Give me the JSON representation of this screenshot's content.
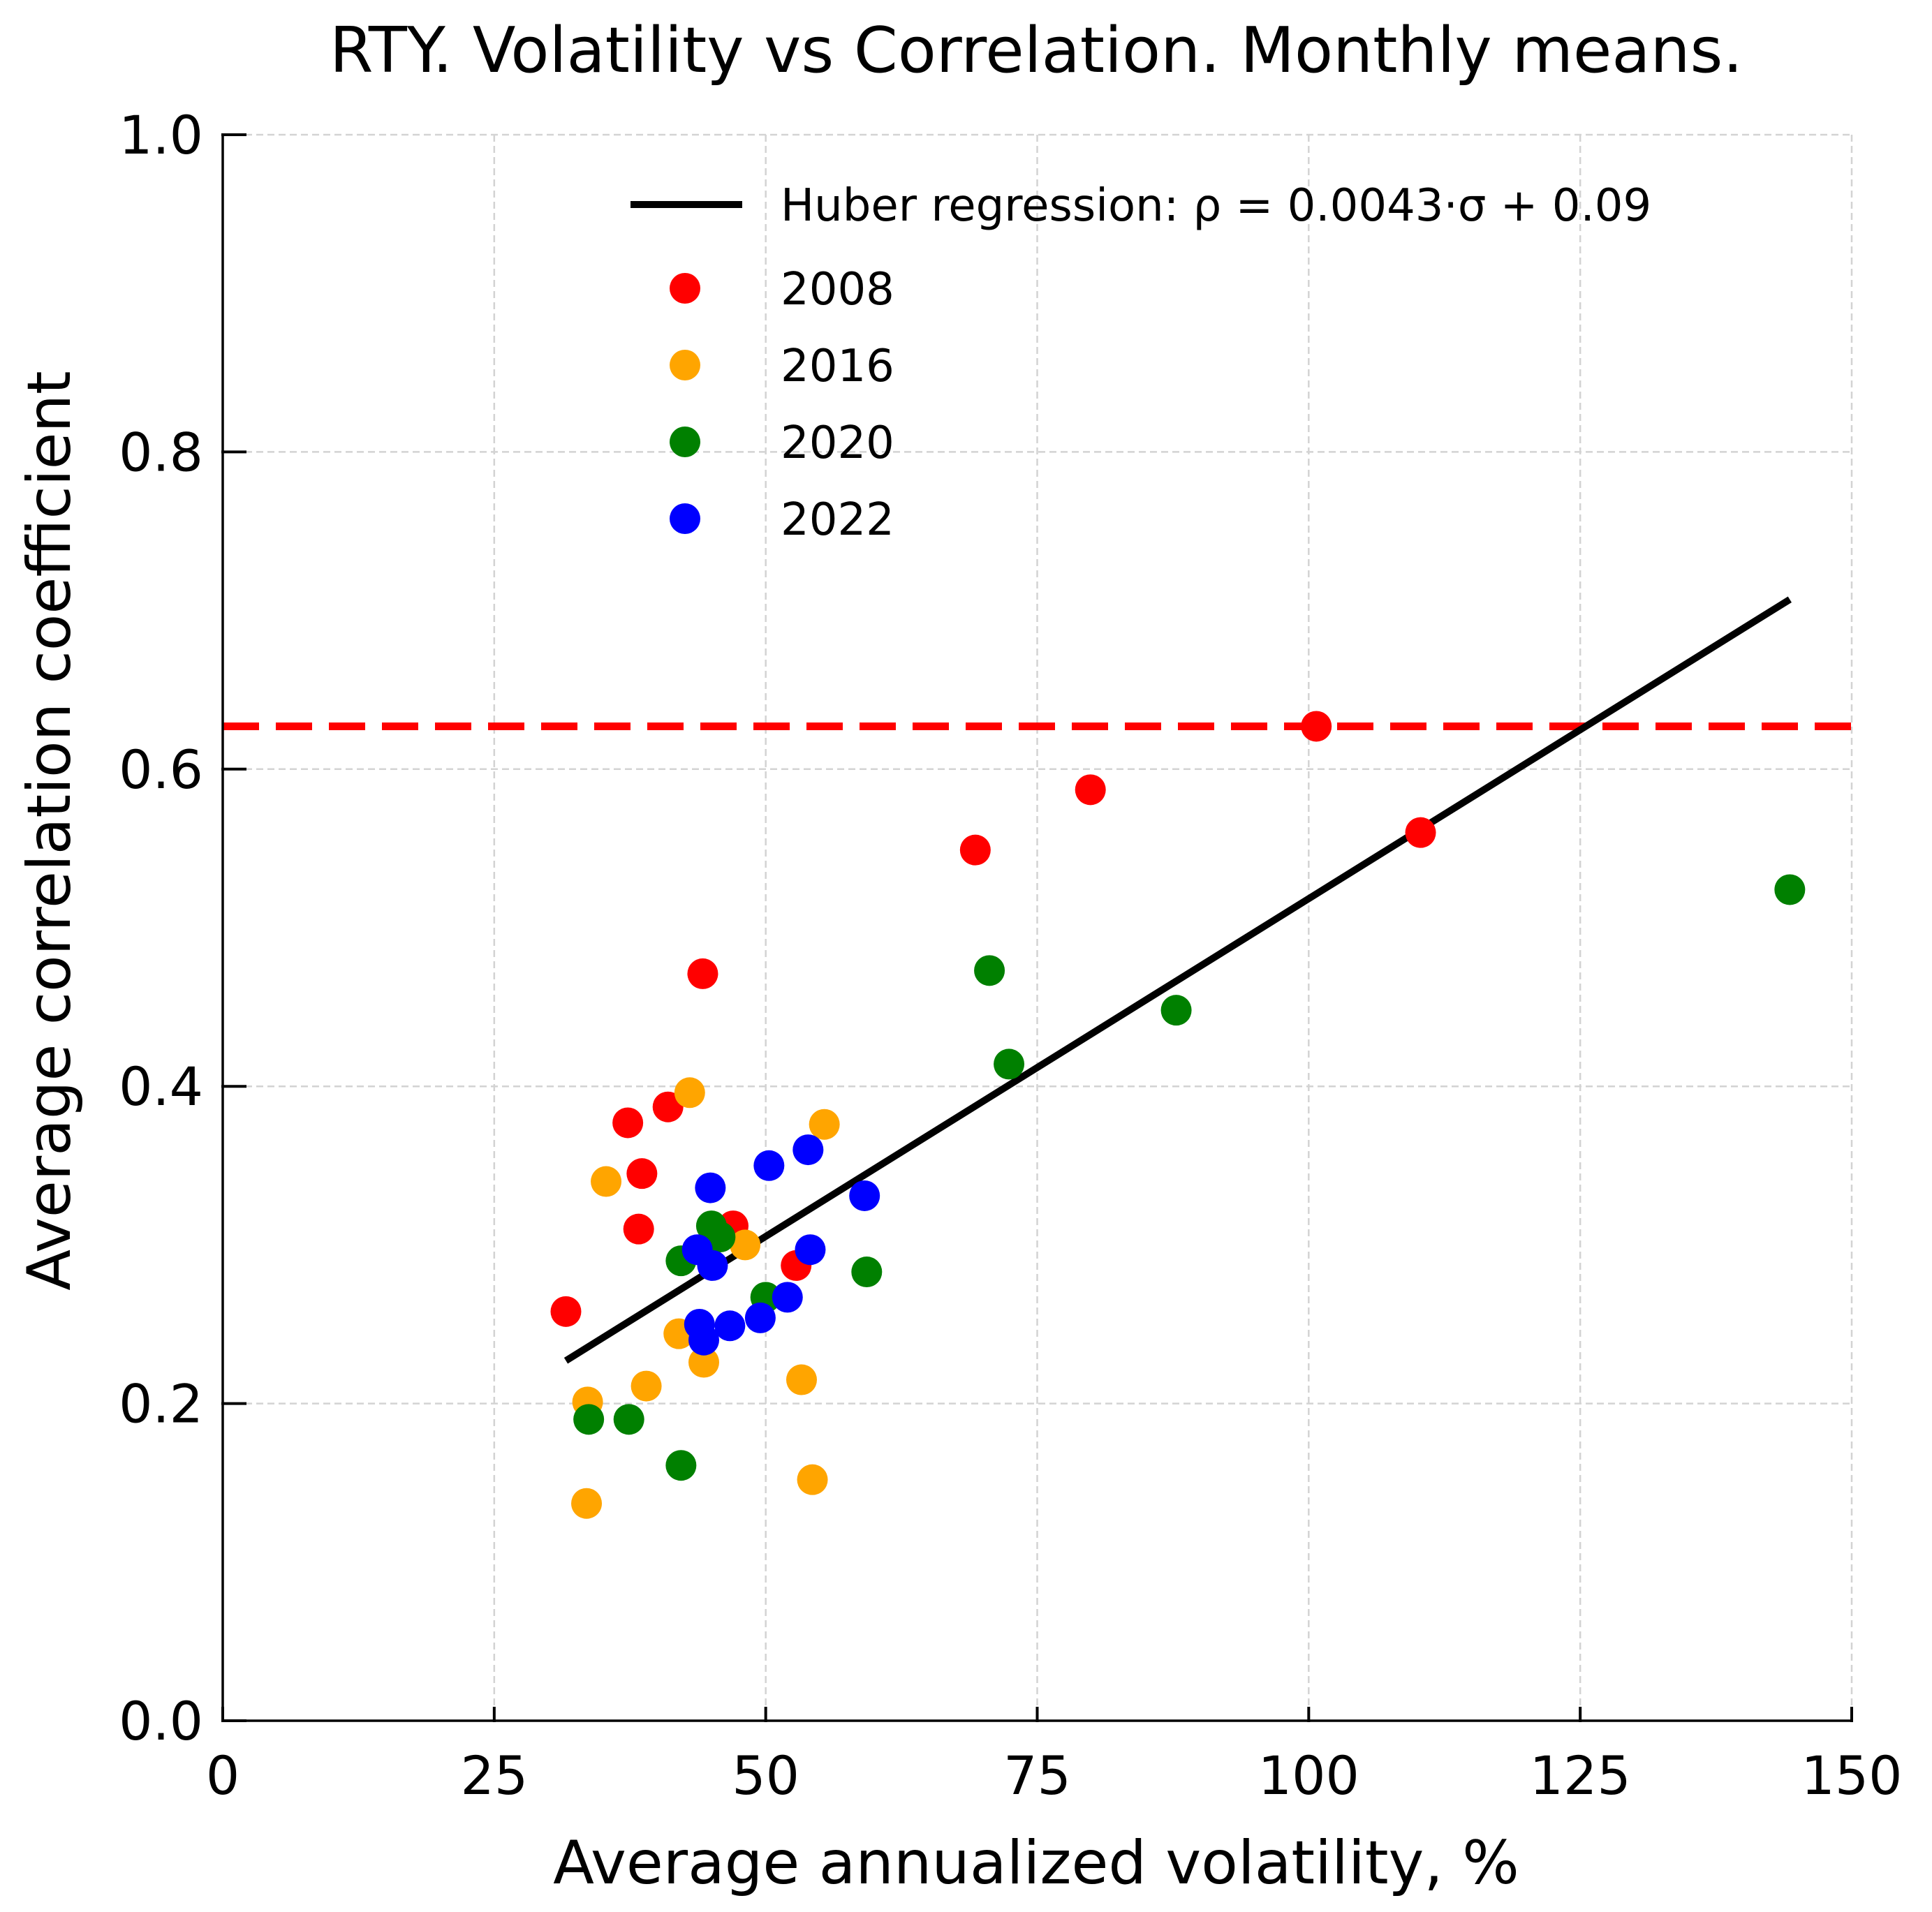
{
  "chart_data": {
    "type": "scatter",
    "title": "RTY. Volatility vs Correlation. Monthly means.",
    "xlabel": "Average annualized volatility, %",
    "ylabel": "Average correlation coefficient",
    "xlim": [
      0,
      150
    ],
    "ylim": [
      0,
      1.0
    ],
    "x_ticks": [
      "0",
      "25",
      "50",
      "75",
      "100",
      "125",
      "150"
    ],
    "x_tick_values": [
      0,
      25,
      50,
      75,
      100,
      125,
      150
    ],
    "y_ticks": [
      "0.0",
      "0.2",
      "0.4",
      "0.6",
      "0.8",
      "1.0"
    ],
    "y_tick_values": [
      0.0,
      0.2,
      0.4,
      0.6,
      0.8,
      1.0
    ],
    "grid": true,
    "legend_position": "top-right",
    "regression": {
      "label": "Huber regression: ρ = 0.0043·σ + 0.09",
      "color": "#000000",
      "slope": 0.0043,
      "intercept": 0.09,
      "x_start": 31.6,
      "x_end": 144.3,
      "y_start": 0.227,
      "y_end": 0.707
    },
    "threshold_line": {
      "y": 0.627,
      "color": "#ff0000",
      "style": "dashed"
    },
    "series": [
      {
        "name": "2008",
        "color": "#ff0000",
        "points": [
          [
            31.6,
            0.258
          ],
          [
            37.3,
            0.377
          ],
          [
            38.3,
            0.31
          ],
          [
            38.6,
            0.345
          ],
          [
            41.0,
            0.387
          ],
          [
            44.2,
            0.471
          ],
          [
            47.0,
            0.312
          ],
          [
            52.8,
            0.287
          ],
          [
            69.3,
            0.549
          ],
          [
            79.9,
            0.587
          ],
          [
            100.7,
            0.627
          ],
          [
            110.3,
            0.56
          ]
        ]
      },
      {
        "name": "2016",
        "color": "#ffa500",
        "points": [
          [
            33.5,
            0.137
          ],
          [
            33.6,
            0.201
          ],
          [
            35.3,
            0.34
          ],
          [
            39.0,
            0.211
          ],
          [
            42.0,
            0.244
          ],
          [
            43.0,
            0.396
          ],
          [
            44.3,
            0.226
          ],
          [
            48.1,
            0.3
          ],
          [
            53.3,
            0.215
          ],
          [
            54.3,
            0.152
          ],
          [
            55.4,
            0.376
          ]
        ]
      },
      {
        "name": "2020",
        "color": "#008000",
        "points": [
          [
            33.7,
            0.19
          ],
          [
            37.4,
            0.19
          ],
          [
            42.2,
            0.161
          ],
          [
            42.2,
            0.29
          ],
          [
            45.0,
            0.312
          ],
          [
            45.8,
            0.305
          ],
          [
            50.0,
            0.267
          ],
          [
            59.3,
            0.283
          ],
          [
            70.6,
            0.473
          ],
          [
            72.4,
            0.414
          ],
          [
            87.8,
            0.448
          ],
          [
            144.3,
            0.524
          ]
        ]
      },
      {
        "name": "2022",
        "color": "#0000ff",
        "points": [
          [
            43.7,
            0.297
          ],
          [
            43.9,
            0.25
          ],
          [
            44.3,
            0.24
          ],
          [
            44.9,
            0.336
          ],
          [
            45.1,
            0.287
          ],
          [
            46.7,
            0.249
          ],
          [
            49.5,
            0.254
          ],
          [
            50.3,
            0.35
          ],
          [
            52.0,
            0.267
          ],
          [
            53.9,
            0.36
          ],
          [
            54.1,
            0.297
          ],
          [
            59.1,
            0.331
          ]
        ]
      }
    ]
  }
}
